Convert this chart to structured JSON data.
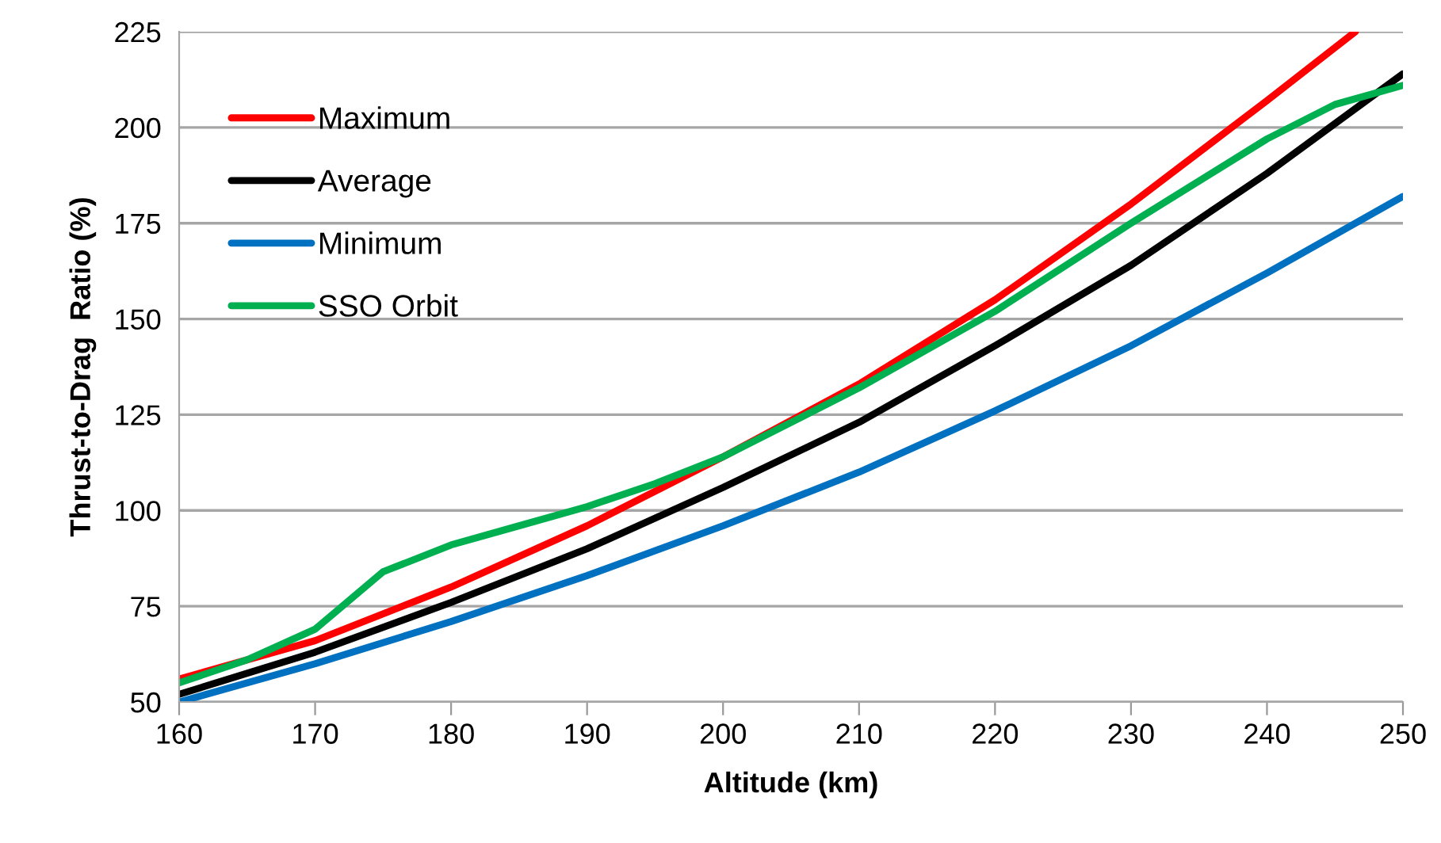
{
  "chart_data": {
    "type": "line",
    "xlabel": "Altitude (km)",
    "ylabel": "Thrust-to-Drag  Ratio (%)",
    "xlim": [
      160,
      250
    ],
    "xticks": [
      160,
      170,
      180,
      190,
      200,
      210,
      220,
      230,
      240,
      250
    ],
    "ylim": [
      50,
      225
    ],
    "yticks": [
      50,
      75,
      100,
      125,
      150,
      175,
      200,
      225
    ],
    "grid": "y",
    "legend": "top left",
    "marker": "none",
    "line_style": "solid",
    "series": [
      {
        "name": "Maximum",
        "color": "#ff0000",
        "x": [
          160,
          170,
          180,
          190,
          200,
          210,
          220,
          230,
          240,
          246.5
        ],
        "values": [
          56,
          66,
          80,
          96,
          114,
          133,
          155,
          180,
          207,
          225
        ]
      },
      {
        "name": "Average",
        "color": "#000000",
        "x": [
          160,
          170,
          180,
          190,
          200,
          210,
          220,
          230,
          240,
          250
        ],
        "values": [
          52,
          63,
          76,
          90,
          106,
          123,
          143,
          164,
          188,
          214
        ]
      },
      {
        "name": "Minimum",
        "color": "#0070c0",
        "x": [
          160,
          170,
          180,
          190,
          200,
          210,
          220,
          230,
          240,
          250
        ],
        "values": [
          50,
          60,
          71,
          83,
          96,
          110,
          126,
          143,
          162,
          182
        ]
      },
      {
        "name": "SSO Orbit",
        "color": "#00b050",
        "x": [
          160,
          165,
          170,
          173,
          175,
          180,
          185,
          190,
          195,
          200,
          210,
          220,
          230,
          240,
          245,
          250
        ],
        "values": [
          55,
          61,
          69,
          78,
          84,
          91,
          96,
          101,
          107,
          114,
          132,
          152,
          175,
          197,
          206,
          211
        ]
      }
    ]
  }
}
